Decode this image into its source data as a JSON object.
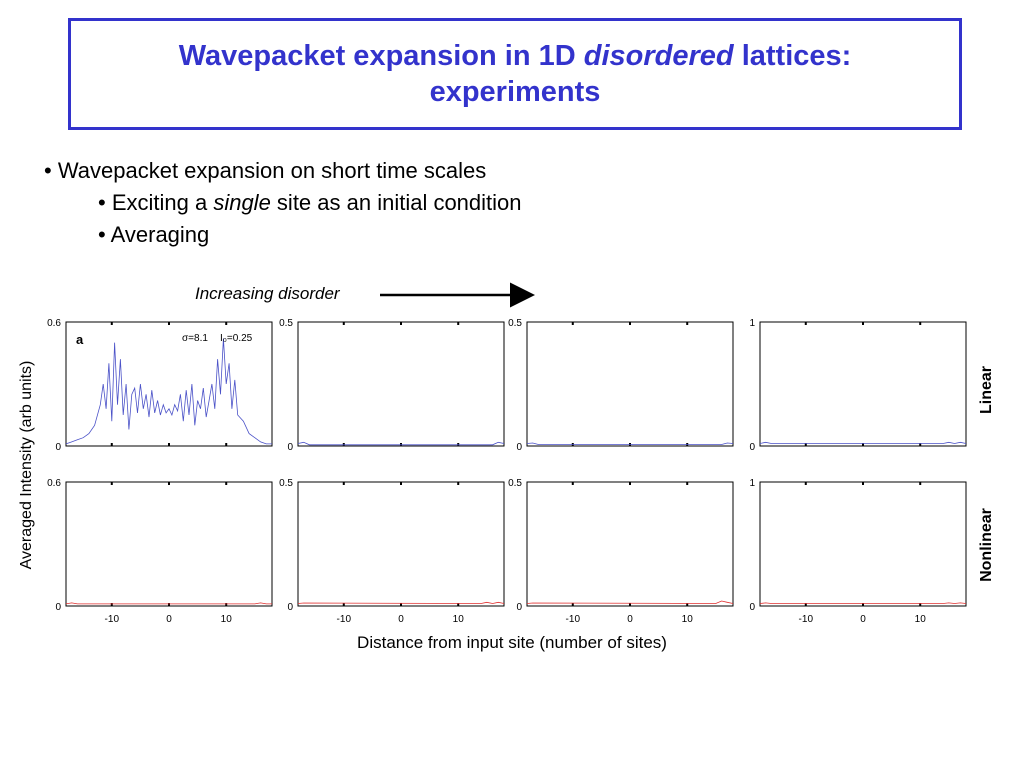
{
  "slide": {
    "title_pre": "Wavepacket expansion in 1D ",
    "title_em": "disordered",
    "title_post": " lattices:",
    "title_line2": "experiments",
    "bullet1": "Wavepacket expansion on short time scales",
    "bullet2_pre": "Exciting a ",
    "bullet2_em": "single",
    "bullet2_post": " site as an initial condition",
    "bullet3": "Averaging",
    "arrow_label": "Increasing disorder"
  },
  "figure": {
    "ylabel": "Averaged Intensity (arb units)",
    "xlabel": "Distance from input site (number of sites)",
    "row_labels": [
      "Linear",
      "Nonlinear"
    ],
    "x_ticks": [
      -10,
      0,
      10
    ],
    "x_range": [
      -18,
      18
    ],
    "panel_label": "a",
    "sigma_text": "σ=8.1",
    "i0_text": "I₀=0.25",
    "colors": {
      "linear": "#4b52c8",
      "nonlinear": "#e03030",
      "axis": "#000000"
    }
  },
  "chart_data": [
    {
      "type": "line",
      "row": "Linear",
      "col": 0,
      "ylim": [
        0,
        0.6
      ],
      "y_ticks": [
        "0",
        "0.6"
      ],
      "series": [
        {
          "color": "#4b52c8",
          "x": [
            -18,
            -17,
            -16,
            -15,
            -14,
            -13,
            -12,
            -11.5,
            -11,
            -10.5,
            -10,
            -9.5,
            -9,
            -8.5,
            -8,
            -7.5,
            -7,
            -6.5,
            -6,
            -5.5,
            -5,
            -4.5,
            -4,
            -3.5,
            -3,
            -2.5,
            -2,
            -1.5,
            -1,
            -0.5,
            0,
            0.5,
            1,
            1.5,
            2,
            2.5,
            3,
            3.5,
            4,
            4.5,
            5,
            5.5,
            6,
            6.5,
            7,
            7.5,
            8,
            8.5,
            9,
            9.5,
            10,
            10.5,
            11,
            11.5,
            12,
            13,
            14,
            15,
            16,
            17,
            18
          ],
          "y": [
            0.01,
            0.02,
            0.03,
            0.04,
            0.06,
            0.1,
            0.2,
            0.3,
            0.18,
            0.4,
            0.12,
            0.5,
            0.2,
            0.42,
            0.15,
            0.3,
            0.08,
            0.25,
            0.28,
            0.16,
            0.3,
            0.18,
            0.25,
            0.14,
            0.27,
            0.16,
            0.22,
            0.15,
            0.2,
            0.16,
            0.18,
            0.15,
            0.2,
            0.17,
            0.25,
            0.12,
            0.27,
            0.15,
            0.3,
            0.1,
            0.22,
            0.18,
            0.28,
            0.14,
            0.22,
            0.3,
            0.18,
            0.42,
            0.25,
            0.52,
            0.3,
            0.4,
            0.18,
            0.32,
            0.15,
            0.12,
            0.06,
            0.04,
            0.02,
            0.01,
            0.01
          ]
        }
      ]
    },
    {
      "type": "line",
      "row": "Linear",
      "col": 1,
      "ylim": [
        0,
        0.5
      ],
      "y_ticks": [
        "0",
        "0.5"
      ],
      "series": [
        {
          "color": "#4b52c8",
          "x": [
            -18,
            -17,
            -16,
            16,
            17,
            18
          ],
          "y": [
            0.01,
            0.015,
            0.005,
            0.005,
            0.015,
            0.01
          ]
        }
      ]
    },
    {
      "type": "line",
      "row": "Linear",
      "col": 2,
      "ylim": [
        0,
        0.5
      ],
      "y_ticks": [
        "0",
        "0.5"
      ],
      "series": [
        {
          "color": "#4b52c8",
          "x": [
            -18,
            -17,
            -16,
            16,
            17,
            18
          ],
          "y": [
            0.01,
            0.012,
            0.006,
            0.006,
            0.012,
            0.01
          ]
        }
      ]
    },
    {
      "type": "line",
      "row": "Linear",
      "col": 3,
      "ylim": [
        0,
        1
      ],
      "y_ticks": [
        "0",
        "1"
      ],
      "series": [
        {
          "color": "#4b52c8",
          "x": [
            -18,
            -17,
            -16,
            14,
            15,
            16,
            17,
            18
          ],
          "y": [
            0.02,
            0.03,
            0.02,
            0.02,
            0.03,
            0.02,
            0.03,
            0.02
          ]
        }
      ]
    },
    {
      "type": "line",
      "row": "Nonlinear",
      "col": 0,
      "ylim": [
        0,
        0.6
      ],
      "y_ticks": [
        "0",
        "0.6"
      ],
      "series": [
        {
          "color": "#e03030",
          "x": [
            -18,
            -17,
            -16,
            15,
            16,
            17,
            18
          ],
          "y": [
            0.01,
            0.015,
            0.01,
            0.01,
            0.015,
            0.01,
            0.01
          ]
        }
      ]
    },
    {
      "type": "line",
      "row": "Nonlinear",
      "col": 1,
      "ylim": [
        0,
        0.5
      ],
      "y_ticks": [
        "0",
        "0.5"
      ],
      "series": [
        {
          "color": "#e03030",
          "x": [
            -18,
            -17,
            14,
            15,
            16,
            17,
            18
          ],
          "y": [
            0.01,
            0.012,
            0.01,
            0.015,
            0.01,
            0.015,
            0.01
          ]
        }
      ]
    },
    {
      "type": "line",
      "row": "Nonlinear",
      "col": 2,
      "ylim": [
        0,
        0.5
      ],
      "y_ticks": [
        "0",
        "0.5"
      ],
      "series": [
        {
          "color": "#e03030",
          "x": [
            -18,
            -17,
            15,
            16,
            17,
            18
          ],
          "y": [
            0.01,
            0.012,
            0.01,
            0.02,
            0.015,
            0.01
          ]
        }
      ]
    },
    {
      "type": "line",
      "row": "Nonlinear",
      "col": 3,
      "ylim": [
        0,
        1
      ],
      "y_ticks": [
        "0",
        "1"
      ],
      "series": [
        {
          "color": "#e03030",
          "x": [
            -18,
            -17,
            -16,
            14,
            15,
            16,
            17,
            18
          ],
          "y": [
            0.02,
            0.025,
            0.02,
            0.02,
            0.025,
            0.02,
            0.025,
            0.02
          ]
        }
      ]
    }
  ]
}
